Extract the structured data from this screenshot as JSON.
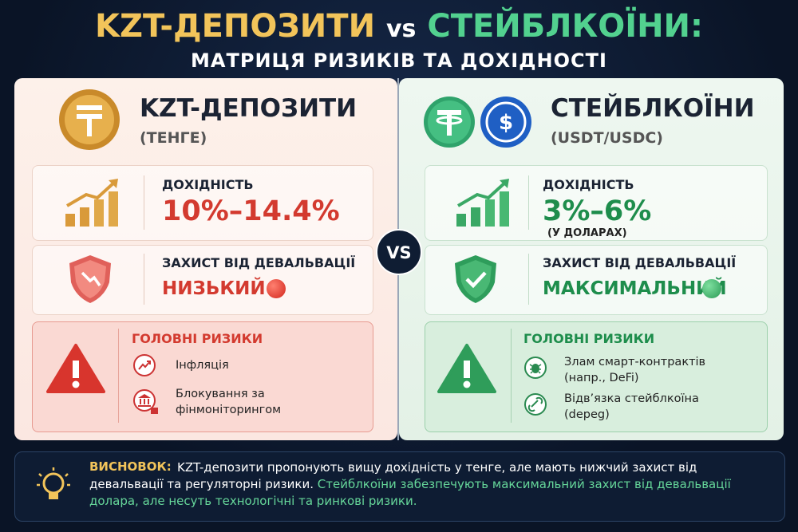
{
  "header": {
    "title_part1": "KZT-ДЕПОЗИТИ",
    "title_vs": "vs",
    "title_part2": "СТЕЙБЛКОЇНИ:",
    "subtitle": "МАТРИЦЯ РИЗИКІВ ТА ДОХІДНОСТІ"
  },
  "vs_badge": "VS",
  "panels": [
    {
      "title": "KZT-ДЕПОЗИТИ",
      "subtitle": "(ТЕНГЕ)",
      "yield_label": "ДОХІДНІСТЬ",
      "yield_value": "10%–14.4%",
      "protection_label": "ЗАХИСТ ВІД ДЕВАЛЬВАЦІЇ",
      "protection_value": "НИЗЬКИЙ",
      "risks_title": "ГОЛОВНІ РИЗИКИ",
      "risks": [
        "Інфляція",
        "Блокування за фінмоніторингом"
      ]
    },
    {
      "title": "СТЕЙБЛКОЇНИ",
      "subtitle": "(USDT/USDC)",
      "yield_label": "ДОХІДНІСТЬ",
      "yield_value": "3%–6%",
      "yield_note": "(У ДОЛАРАХ)",
      "protection_label": "ЗАХИСТ ВІД ДЕВАЛЬВАЦІЇ",
      "protection_value": "МАКСИМАЛЬНИЙ",
      "risks_title": "ГОЛОВНІ РИЗИКИ",
      "risks": [
        "Злам смарт-контрактів (напр., DeFi)",
        "Відв’язка стейблкоїна (depeg)"
      ]
    }
  ],
  "conclusion": {
    "label": "ВИСНОВОК:",
    "text_part1": "KZT-депозити пропонують вищу дохідність у тенге, але мають нижчий захист від девальвації та регуляторні ризики.",
    "text_part2": "Стейблкоїни забезпечують максимальний захист від девальвації долара, але несуть технологічні та ринкові ризики."
  }
}
